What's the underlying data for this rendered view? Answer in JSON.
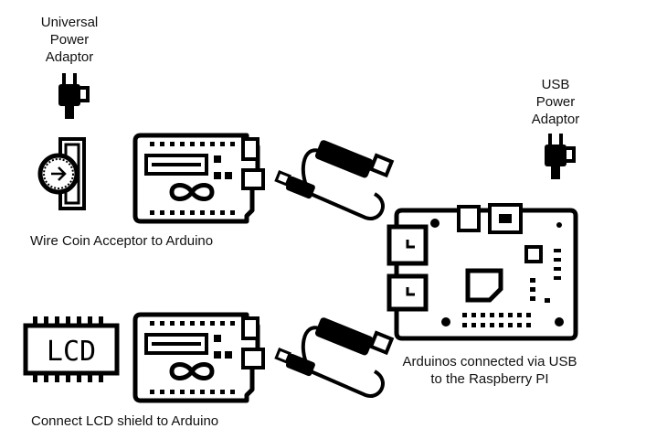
{
  "diagram": {
    "colors": {
      "stroke": "#000000",
      "background": "#ffffff",
      "text": "#111111"
    },
    "universal_adaptor": {
      "lines": [
        "Universal",
        "Power",
        "Adaptor"
      ],
      "icon": "power-adapter-icon"
    },
    "usb_adaptor": {
      "lines": [
        "USB",
        "Power",
        "Adaptor"
      ],
      "icon": "power-adapter-icon"
    },
    "coin_section": {
      "caption": "Wire Coin Acceptor to Arduino",
      "icons": [
        "coin-acceptor-icon",
        "arduino-board-icon",
        "usb-cable-icon"
      ]
    },
    "lcd_section": {
      "caption": "Connect LCD shield to Arduino",
      "lcd_text": "LCD",
      "icons": [
        "lcd-display-icon",
        "arduino-board-icon",
        "usb-cable-icon"
      ]
    },
    "pi_section": {
      "lines": [
        "Arduinos connected via USB",
        "to the Raspberry PI"
      ],
      "icon": "raspberry-pi-icon"
    }
  }
}
